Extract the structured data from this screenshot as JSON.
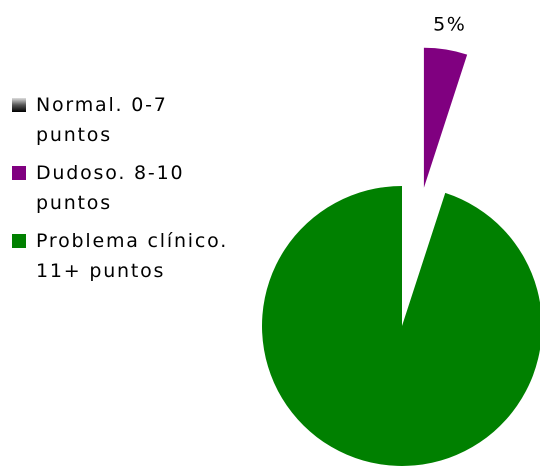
{
  "chart_data": {
    "type": "pie",
    "categories": [
      "Normal. 0-7 puntos",
      "Dudoso. 8-10 puntos",
      "Problema clínico. 11+ puntos"
    ],
    "values": [
      0,
      5,
      95
    ],
    "value_labels": [
      null,
      "5%",
      null
    ],
    "colors": [
      "#555555",
      "#800080",
      "#008000"
    ],
    "exploded": [
      false,
      true,
      false
    ],
    "legend": "left"
  }
}
